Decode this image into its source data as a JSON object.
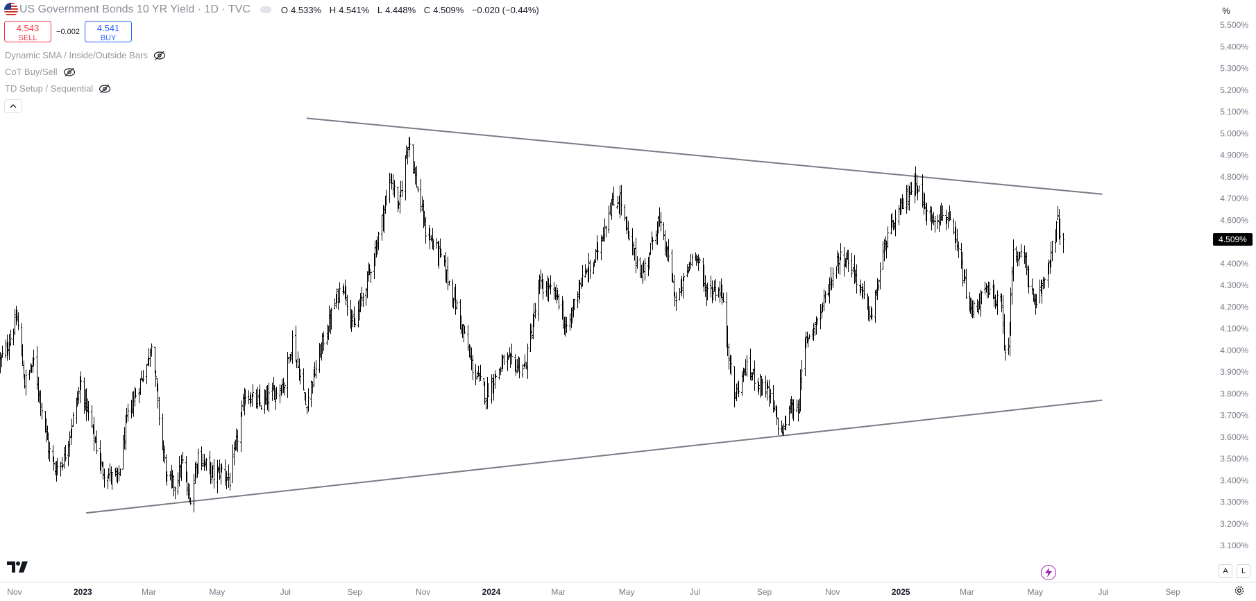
{
  "header": {
    "symbol_title": "US Government Bonds 10 YR Yield · 1D · TVC",
    "ohlc": {
      "o_label": "O",
      "o_value": "4.533%",
      "h_label": "H",
      "h_value": "4.541%",
      "l_label": "L",
      "l_value": "4.448%",
      "c_label": "C",
      "c_value": "4.509%",
      "change": "−0.020 (−0.44%)"
    }
  },
  "trade": {
    "sell_price": "4.543",
    "sell_label": "SELL",
    "spread": "−0.002",
    "buy_price": "4.541",
    "buy_label": "BUY"
  },
  "indicators": [
    {
      "label": "Dynamic SMA / Inside/Outside Bars",
      "icon": "eye-off-icon"
    },
    {
      "label": "CoT Buy/Sell",
      "icon": "eye-off-icon"
    },
    {
      "label": "TD Setup / Sequential",
      "icon": "eye-off-icon"
    }
  ],
  "scale": {
    "mode_button": "%",
    "last_price_tag": "4.509%",
    "auto_button": "A",
    "log_button": "L"
  },
  "colors": {
    "bars": "#000000",
    "trendline": "#787b86",
    "sell": "#f23645",
    "buy": "#2962ff",
    "axis_text": "#787b86",
    "bolt": "#9c27b0"
  },
  "chart_data": {
    "type": "ohlc",
    "y_axis": {
      "min": 3.05,
      "max": 5.55,
      "unit": "%",
      "tick_labels": [
        "3.100%",
        "3.200%",
        "3.300%",
        "3.400%",
        "3.500%",
        "3.600%",
        "3.700%",
        "3.800%",
        "3.900%",
        "4.000%",
        "4.100%",
        "4.200%",
        "4.300%",
        "4.400%",
        "4.500%",
        "4.600%",
        "4.700%",
        "4.800%",
        "4.900%",
        "5.000%",
        "5.100%",
        "5.200%",
        "5.300%",
        "5.400%",
        "5.500%"
      ],
      "tick_values": [
        3.1,
        3.2,
        3.3,
        3.4,
        3.5,
        3.6,
        3.7,
        3.8,
        3.9,
        4.0,
        4.1,
        4.2,
        4.3,
        4.4,
        4.5,
        4.6,
        4.7,
        4.8,
        4.9,
        5.0,
        5.1,
        5.2,
        5.3,
        5.4,
        5.5
      ]
    },
    "x_axis": {
      "start": "2022-10-19",
      "end": "2025-10-05",
      "ticks": [
        {
          "label": "Nov",
          "date": "2022-11-01",
          "bold": false
        },
        {
          "label": "2023",
          "date": "2023-01-01",
          "bold": true
        },
        {
          "label": "Mar",
          "date": "2023-03-01",
          "bold": false
        },
        {
          "label": "May",
          "date": "2023-05-01",
          "bold": false
        },
        {
          "label": "Jul",
          "date": "2023-07-01",
          "bold": false
        },
        {
          "label": "Sep",
          "date": "2023-09-01",
          "bold": false
        },
        {
          "label": "Nov",
          "date": "2023-11-01",
          "bold": false
        },
        {
          "label": "2024",
          "date": "2024-01-01",
          "bold": true
        },
        {
          "label": "Mar",
          "date": "2024-03-01",
          "bold": false
        },
        {
          "label": "May",
          "date": "2024-05-01",
          "bold": false
        },
        {
          "label": "Jul",
          "date": "2024-07-01",
          "bold": false
        },
        {
          "label": "Sep",
          "date": "2024-09-01",
          "bold": false
        },
        {
          "label": "Nov",
          "date": "2024-11-01",
          "bold": false
        },
        {
          "label": "2025",
          "date": "2025-01-01",
          "bold": true
        },
        {
          "label": "Mar",
          "date": "2025-03-01",
          "bold": false
        },
        {
          "label": "May",
          "date": "2025-05-01",
          "bold": false
        },
        {
          "label": "Jul",
          "date": "2025-07-01",
          "bold": false
        },
        {
          "label": "Sep",
          "date": "2025-09-01",
          "bold": false
        }
      ]
    },
    "series_close_anchors": [
      [
        "2022-10-19",
        3.95
      ],
      [
        "2022-10-24",
        4.0
      ],
      [
        "2022-11-03",
        4.15
      ],
      [
        "2022-11-10",
        3.85
      ],
      [
        "2022-11-18",
        3.95
      ],
      [
        "2022-12-01",
        3.55
      ],
      [
        "2022-12-07",
        3.45
      ],
      [
        "2022-12-15",
        3.5
      ],
      [
        "2022-12-30",
        3.85
      ],
      [
        "2023-01-18",
        3.45
      ],
      [
        "2023-02-01",
        3.4
      ],
      [
        "2023-02-10",
        3.7
      ],
      [
        "2023-02-28",
        3.95
      ],
      [
        "2023-03-03",
        4.05
      ],
      [
        "2023-03-10",
        3.7
      ],
      [
        "2023-03-17",
        3.4
      ],
      [
        "2023-03-24",
        3.38
      ],
      [
        "2023-03-31",
        3.48
      ],
      [
        "2023-04-06",
        3.3
      ],
      [
        "2023-04-14",
        3.52
      ],
      [
        "2023-04-28",
        3.42
      ],
      [
        "2023-05-05",
        3.45
      ],
      [
        "2023-05-12",
        3.4
      ],
      [
        "2023-05-26",
        3.8
      ],
      [
        "2023-06-09",
        3.75
      ],
      [
        "2023-06-30",
        3.85
      ],
      [
        "2023-07-07",
        4.05
      ],
      [
        "2023-07-19",
        3.75
      ],
      [
        "2023-08-04",
        4.05
      ],
      [
        "2023-08-21",
        4.32
      ],
      [
        "2023-08-31",
        4.1
      ],
      [
        "2023-09-21",
        4.5
      ],
      [
        "2023-10-03",
        4.8
      ],
      [
        "2023-10-10",
        4.65
      ],
      [
        "2023-10-19",
        4.99
      ],
      [
        "2023-10-23",
        4.85
      ],
      [
        "2023-11-03",
        4.55
      ],
      [
        "2023-11-17",
        4.43
      ],
      [
        "2023-12-01",
        4.2
      ],
      [
        "2023-12-15",
        3.92
      ],
      [
        "2023-12-27",
        3.8
      ],
      [
        "2024-01-12",
        3.95
      ],
      [
        "2024-01-31",
        3.92
      ],
      [
        "2024-02-13",
        4.3
      ],
      [
        "2024-02-29",
        4.25
      ],
      [
        "2024-03-08",
        4.08
      ],
      [
        "2024-03-19",
        4.3
      ],
      [
        "2024-04-01",
        4.4
      ],
      [
        "2024-04-16",
        4.66
      ],
      [
        "2024-04-25",
        4.7
      ],
      [
        "2024-05-03",
        4.5
      ],
      [
        "2024-05-15",
        4.35
      ],
      [
        "2024-05-29",
        4.6
      ],
      [
        "2024-06-07",
        4.42
      ],
      [
        "2024-06-14",
        4.22
      ],
      [
        "2024-07-01",
        4.47
      ],
      [
        "2024-07-10",
        4.28
      ],
      [
        "2024-07-24",
        4.28
      ],
      [
        "2024-08-05",
        3.78
      ],
      [
        "2024-08-15",
        3.92
      ],
      [
        "2024-09-03",
        3.82
      ],
      [
        "2024-09-16",
        3.62
      ],
      [
        "2024-09-24",
        3.73
      ],
      [
        "2024-10-01",
        3.74
      ],
      [
        "2024-10-07",
        4.03
      ],
      [
        "2024-10-21",
        4.18
      ],
      [
        "2024-11-06",
        4.43
      ],
      [
        "2024-11-15",
        4.42
      ],
      [
        "2024-12-06",
        4.15
      ],
      [
        "2024-12-18",
        4.5
      ],
      [
        "2025-01-14",
        4.79
      ],
      [
        "2025-01-24",
        4.62
      ],
      [
        "2025-02-11",
        4.62
      ],
      [
        "2025-02-21",
        4.45
      ],
      [
        "2025-03-04",
        4.17
      ],
      [
        "2025-03-18",
        4.27
      ],
      [
        "2025-03-31",
        4.22
      ],
      [
        "2025-04-04",
        4.0
      ],
      [
        "2025-04-07",
        3.99
      ],
      [
        "2025-04-11",
        4.48
      ],
      [
        "2025-04-22",
        4.4
      ],
      [
        "2025-05-01",
        4.18
      ],
      [
        "2025-05-15",
        4.45
      ],
      [
        "2025-05-21",
        4.59
      ],
      [
        "2025-05-26",
        4.51
      ]
    ],
    "last_bar": {
      "date": "2025-05-26",
      "open": 4.533,
      "high": 4.541,
      "low": 4.448,
      "close": 4.509
    },
    "trendlines": [
      {
        "name": "upper",
        "start": {
          "date": "2023-07-20",
          "value": 5.07
        },
        "end": {
          "date": "2025-06-30",
          "value": 4.72
        }
      },
      {
        "name": "lower",
        "start": {
          "date": "2023-01-04",
          "value": 3.25
        },
        "end": {
          "date": "2025-06-30",
          "value": 3.77
        }
      }
    ]
  }
}
